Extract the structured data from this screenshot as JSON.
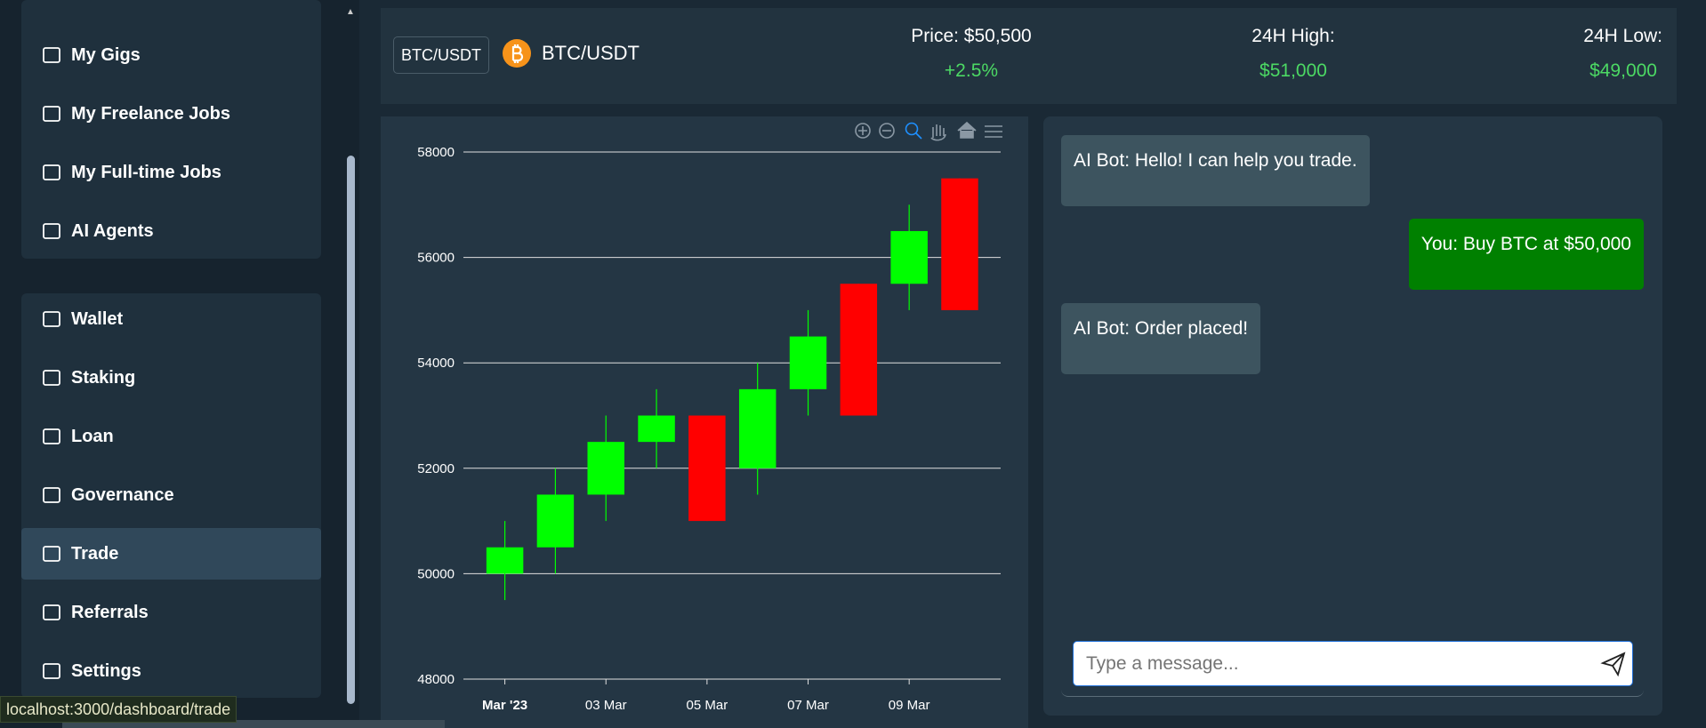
{
  "sidebar": {
    "groups": [
      [
        "My Gigs",
        "My Freelance Jobs",
        "My Full-time Jobs",
        "AI Agents"
      ],
      [
        "Wallet",
        "Staking",
        "Loan",
        "Governance",
        "Trade",
        "Referrals",
        "Settings"
      ]
    ]
  },
  "header": {
    "pair_button": "BTC/USDT",
    "pair": "BTC/USDT",
    "price": "Price: $50,500",
    "change": "+2.5%",
    "high_label": "24H High:",
    "high": "$51,000",
    "low_label": "24H Low:",
    "low": "$49,000"
  },
  "chart_data": {
    "type": "candlestick",
    "categories": [
      "Mar '23",
      null,
      "03 Mar",
      null,
      "05 Mar",
      null,
      "07 Mar",
      null,
      "09 Mar",
      null
    ],
    "open": [
      50000,
      50500,
      51500,
      52500,
      53000,
      52000,
      53500,
      55500,
      55500,
      57500
    ],
    "high": [
      51000,
      52000,
      53000,
      53500,
      53000,
      54000,
      55000,
      55500,
      57000,
      57500
    ],
    "low": [
      49500,
      50000,
      51000,
      52000,
      51000,
      51500,
      53000,
      53000,
      55000,
      55000
    ],
    "close": [
      50500,
      51500,
      52500,
      53000,
      51000,
      53500,
      54500,
      53000,
      56500,
      55000
    ],
    "up_color": "#00ff00",
    "down_color": "#ff0000",
    "ylim": [
      48000,
      58000
    ],
    "yticks": [
      48000,
      50000,
      52000,
      54000,
      56000,
      58000
    ],
    "grid": true
  },
  "chat": {
    "messages": [
      {
        "from": "bot",
        "text": "AI Bot: Hello! I can help you trade."
      },
      {
        "from": "user",
        "text": "You: Buy BTC at $50,000"
      },
      {
        "from": "bot",
        "text": "AI Bot: Order placed!"
      }
    ],
    "placeholder": "Type a message..."
  },
  "status_url": "localhost:3000/dashboard/trade"
}
